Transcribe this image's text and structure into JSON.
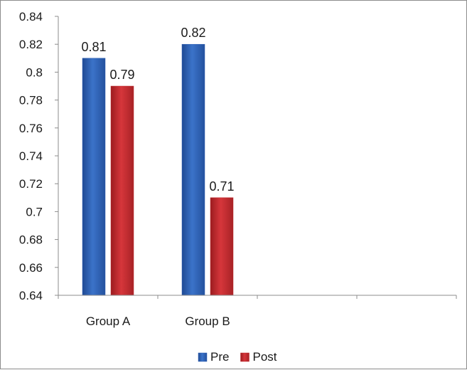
{
  "chart_data": {
    "type": "bar",
    "categories": [
      "Group A",
      "Group B"
    ],
    "series": [
      {
        "name": "Pre",
        "values": [
          0.81,
          0.82
        ],
        "color": "#2f5fb3",
        "data_labels": [
          "0.81",
          "0.82"
        ]
      },
      {
        "name": "Post",
        "values": [
          0.79,
          0.71
        ],
        "color": "#c0282d",
        "data_labels": [
          "0.79",
          "0.71"
        ]
      }
    ],
    "ylim": [
      0.64,
      0.84
    ],
    "y_ticks": [
      0.64,
      0.66,
      0.68,
      0.7,
      0.72,
      0.74,
      0.76,
      0.78,
      0.8,
      0.82,
      0.84
    ],
    "y_tick_labels": [
      "0.64",
      "0.66",
      "0.68",
      "0.7",
      "0.72",
      "0.74",
      "0.76",
      "0.78",
      "0.8",
      "0.82",
      "0.84"
    ],
    "grid": false,
    "legend_position": "bottom"
  }
}
